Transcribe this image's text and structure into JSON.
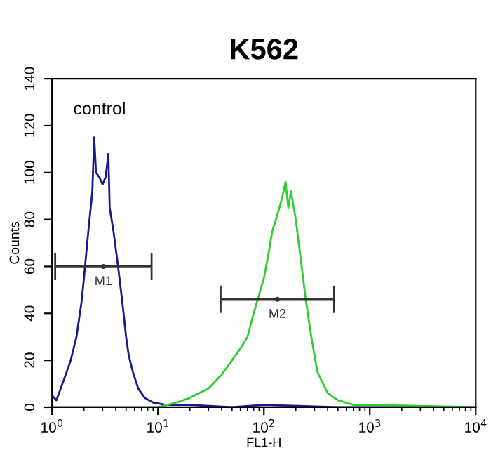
{
  "chart_data": {
    "type": "line",
    "title": "K562",
    "xlabel": "FL1-H",
    "ylabel": "Counts",
    "log": "x",
    "xlim": [
      1,
      10000
    ],
    "xticks": [
      {
        "value": 1,
        "label": "10$^{0}$"
      },
      {
        "value": 10,
        "label": "10$^{1}$"
      },
      {
        "value": 100,
        "label": "10$^{2}$"
      },
      {
        "value": 1000,
        "label": "10$^{3}$"
      },
      {
        "value": 10000,
        "label": "10$^{4}$"
      }
    ],
    "ylim": [
      0,
      140
    ],
    "yticks": [
      0,
      20,
      40,
      60,
      80,
      100,
      120,
      140
    ],
    "grid": false,
    "legend": false,
    "annotations": [
      "control"
    ],
    "series": [
      {
        "color": "#1a1a8c",
        "x": [
          1.0,
          1.1,
          1.3,
          1.5,
          1.7,
          1.9,
          2.0,
          2.2,
          2.4,
          2.5,
          2.6,
          2.8,
          3.0,
          3.2,
          3.4,
          3.5,
          3.8,
          4.2,
          4.6,
          5.0,
          5.3,
          5.8,
          6.5,
          7.5,
          9,
          12,
          20,
          50,
          100,
          500,
          10000
        ],
        "values": [
          5,
          3,
          12,
          20,
          30,
          45,
          55,
          75,
          92,
          115,
          100,
          98,
          95,
          98,
          108,
          85,
          75,
          60,
          45,
          30,
          22,
          15,
          8,
          4,
          2,
          1,
          1,
          0,
          1,
          0,
          0
        ]
      },
      {
        "color": "#33cc33",
        "x": [
          1,
          10,
          15,
          20,
          30,
          40,
          50,
          60,
          70,
          80,
          90,
          100,
          110,
          120,
          130,
          140,
          150,
          160,
          170,
          180,
          200,
          220,
          250,
          280,
          320,
          400,
          500,
          700,
          1000,
          10000
        ],
        "values": [
          0,
          0,
          2,
          4,
          8,
          14,
          20,
          25,
          30,
          40,
          48,
          55,
          65,
          75,
          80,
          85,
          90,
          96,
          85,
          92,
          80,
          65,
          45,
          30,
          15,
          6,
          3,
          1,
          1,
          0
        ]
      },
      {
        "type": "scatter",
        "name": "M1",
        "color": "#333333",
        "x": [
          3.05
        ],
        "values": [
          60
        ],
        "xerrors": [
          [
            1.07,
            8.7
          ]
        ]
      },
      {
        "type": "scatter",
        "name": "M2",
        "color": "#333333",
        "x": [
          134
        ],
        "values": [
          46
        ],
        "xerrors": [
          [
            39,
            460
          ]
        ]
      }
    ]
  }
}
